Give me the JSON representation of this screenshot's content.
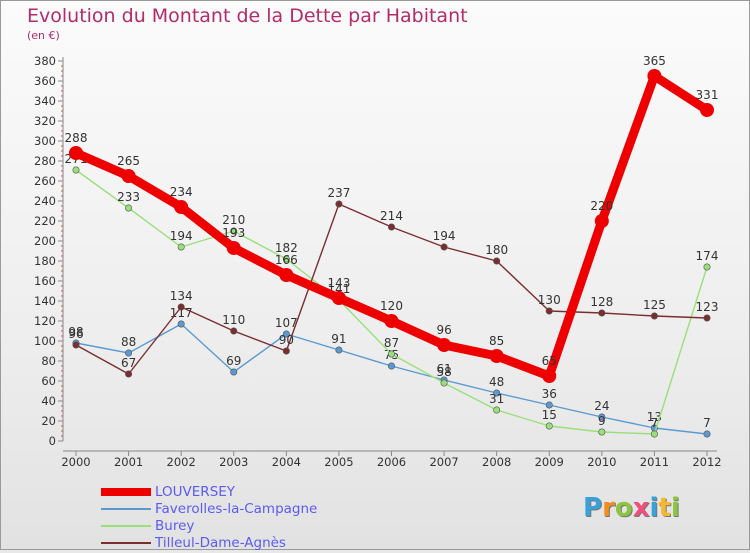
{
  "title": "Evolution du Montant de la Dette par Habitant",
  "subtitle": "(en €)",
  "logo": {
    "text": "Proxiti",
    "letters": [
      {
        "ch": "P",
        "color": "#3aa0d8"
      },
      {
        "ch": "r",
        "color": "#f28c1e"
      },
      {
        "ch": "o",
        "color": "#8cc63f"
      },
      {
        "ch": "x",
        "color": "#ef4f7a"
      },
      {
        "ch": "i",
        "color": "#3aa0d8"
      },
      {
        "ch": "t",
        "color": "#f7b731"
      },
      {
        "ch": "i",
        "color": "#8cc63f"
      }
    ]
  },
  "chart_data": {
    "type": "line",
    "title": "Evolution du Montant de la Dette par Habitant",
    "ylabel": "(en €)",
    "xlabel": "",
    "categories": [
      "2000",
      "2001",
      "2002",
      "2003",
      "2004",
      "2005",
      "2006",
      "2007",
      "2008",
      "2009",
      "2010",
      "2011",
      "2012"
    ],
    "ylim": [
      0,
      380
    ],
    "ytick_step": 20,
    "grid": false,
    "legend_position": "bottom-left",
    "series": [
      {
        "name": "LOUVERSEY",
        "color": "#ee0000",
        "emphasis": true,
        "values": [
          288,
          265,
          234,
          193,
          166,
          143,
          120,
          96,
          85,
          65,
          220,
          365,
          331
        ]
      },
      {
        "name": "Faverolles-la-Campagne",
        "color": "#5b9ad0",
        "emphasis": false,
        "values": [
          98,
          88,
          117,
          69,
          107,
          91,
          75,
          61,
          48,
          36,
          24,
          13,
          7
        ]
      },
      {
        "name": "Burey",
        "color": "#99e07a",
        "emphasis": false,
        "values": [
          271,
          233,
          194,
          210,
          182,
          141,
          87,
          58,
          31,
          15,
          9,
          7,
          174
        ]
      },
      {
        "name": "Tilleul-Dame-Agnès",
        "color": "#7a2e2e",
        "emphasis": false,
        "values": [
          96,
          67,
          134,
          110,
          90,
          237,
          214,
          194,
          180,
          130,
          128,
          125,
          123
        ]
      }
    ]
  }
}
